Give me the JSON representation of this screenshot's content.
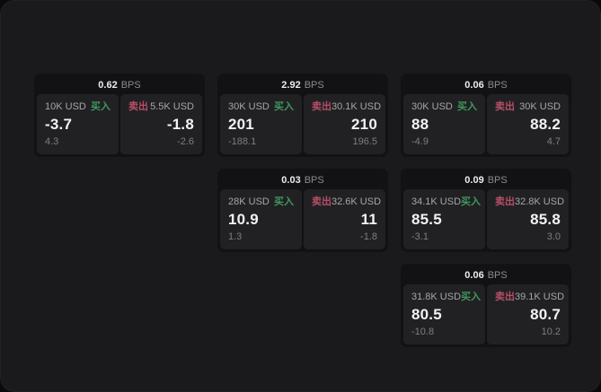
{
  "labels": {
    "bps_unit": "BPS",
    "buy": "买入",
    "sell": "卖出"
  },
  "colors": {
    "buy": "#3f975e",
    "sell": "#b54f66",
    "surface": "#1a1a1c",
    "card": "#121214",
    "panel": "#212124"
  },
  "cards": [
    {
      "bps": "0.62",
      "grid": {
        "row": 1,
        "col": 1
      },
      "buy": {
        "amount": "10K USD",
        "price": "-3.7",
        "sub": "4.3"
      },
      "sell": {
        "amount": "5.5K USD",
        "price": "-1.8",
        "sub": "-2.6"
      }
    },
    {
      "bps": "2.92",
      "grid": {
        "row": 1,
        "col": 2
      },
      "buy": {
        "amount": "30K USD",
        "price": "201",
        "sub": "-188.1"
      },
      "sell": {
        "amount": "30.1K USD",
        "price": "210",
        "sub": "196.5"
      }
    },
    {
      "bps": "0.06",
      "grid": {
        "row": 1,
        "col": 3
      },
      "buy": {
        "amount": "30K USD",
        "price": "88",
        "sub": "-4.9"
      },
      "sell": {
        "amount": "30K USD",
        "price": "88.2",
        "sub": "4.7"
      }
    },
    {
      "bps": "0.03",
      "grid": {
        "row": 2,
        "col": 2
      },
      "buy": {
        "amount": "28K USD",
        "price": "10.9",
        "sub": "1.3"
      },
      "sell": {
        "amount": "32.6K USD",
        "price": "11",
        "sub": "-1.8"
      }
    },
    {
      "bps": "0.09",
      "grid": {
        "row": 2,
        "col": 3
      },
      "buy": {
        "amount": "34.1K USD",
        "price": "85.5",
        "sub": "-3.1"
      },
      "sell": {
        "amount": "32.8K USD",
        "price": "85.8",
        "sub": "3.0"
      }
    },
    {
      "bps": "0.06",
      "grid": {
        "row": 3,
        "col": 3
      },
      "buy": {
        "amount": "31.8K USD",
        "price": "80.5",
        "sub": "-10.8"
      },
      "sell": {
        "amount": "39.1K USD",
        "price": "80.7",
        "sub": "10.2"
      }
    }
  ]
}
